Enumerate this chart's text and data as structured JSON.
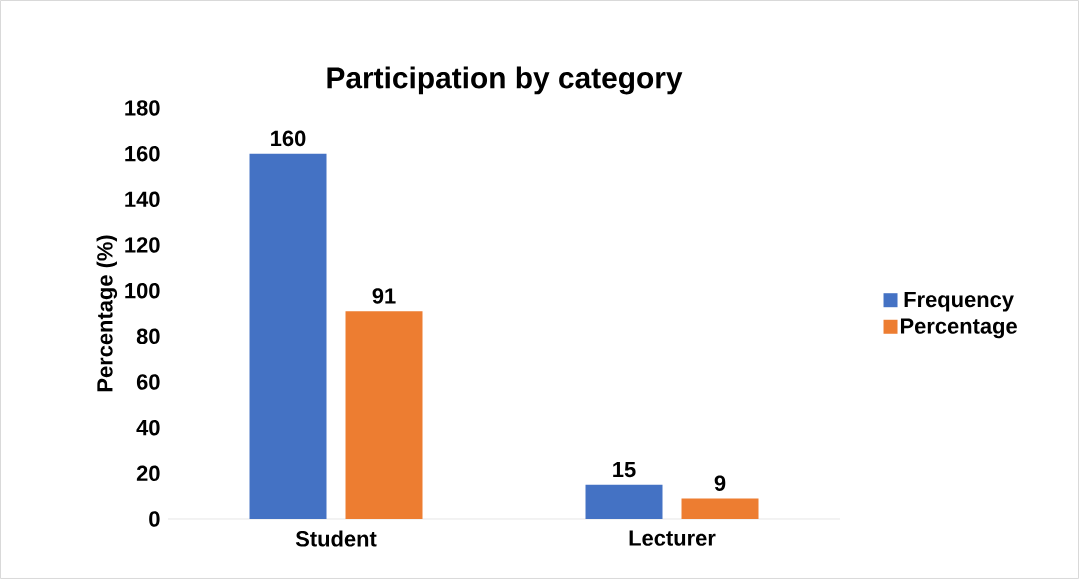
{
  "chart_data": {
    "type": "bar",
    "title": "Participation by category",
    "ylabel": "Percentage (%)",
    "categories": [
      "Student",
      "Lecturer"
    ],
    "series": [
      {
        "name": "Frequency",
        "color": "#4472c4",
        "values": [
          160,
          15
        ]
      },
      {
        "name": "Percentage",
        "color": "#ed7d31",
        "values": [
          91,
          9
        ]
      }
    ],
    "ylim": [
      0,
      180
    ],
    "yticks": [
      0,
      20,
      40,
      60,
      80,
      100,
      120,
      140,
      160,
      180
    ],
    "data_labels": true,
    "legend": "right",
    "grid": false
  }
}
